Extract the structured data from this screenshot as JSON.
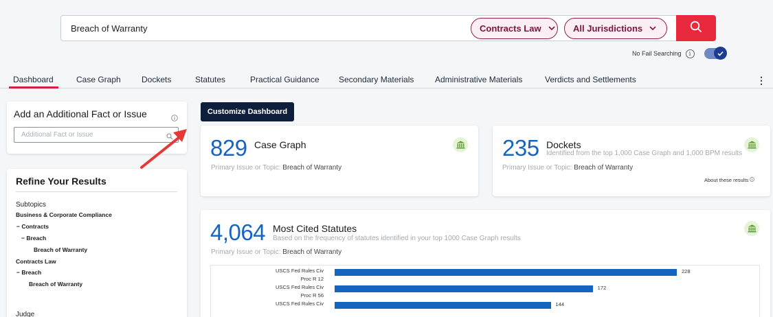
{
  "search": {
    "query": "Breach of Warranty",
    "practice_area": "Contracts Law",
    "jurisdiction": "All Jurisdictions",
    "no_fail_label": "No Fail Searching",
    "info_glyph": "i"
  },
  "tabs": [
    "Dashboard",
    "Case Graph",
    "Dockets",
    "Statutes",
    "Practical Guidance",
    "Secondary Materials",
    "Administrative Materials",
    "Verdicts and Settlements"
  ],
  "fact_card": {
    "title": "Add an Additional Fact or Issue",
    "placeholder": "Additional Fact or Issue"
  },
  "refine": {
    "title": "Refine Your Results",
    "subtopics_label": "Subtopics",
    "tree": [
      {
        "text": "Business & Corporate Compliance",
        "level": 0
      },
      {
        "text": "− Contracts",
        "level": 1
      },
      {
        "text": "− Breach",
        "level": 2
      },
      {
        "text": "Breach of Warranty",
        "level": 3
      },
      {
        "text": "Contracts Law",
        "level": 0
      },
      {
        "text": "− Breach",
        "level": 1
      },
      {
        "text": "Breach of Warranty",
        "level": 2
      }
    ],
    "judge_label": "Judge"
  },
  "customize_label": "Customize Dashboard",
  "cards": {
    "case_graph": {
      "count": "829",
      "title": "Case Graph",
      "primary_label": "Primary Issue or Topic:",
      "primary_value": "Breach of Warranty"
    },
    "dockets": {
      "count": "235",
      "title": "Dockets",
      "subtitle": "Identified from the top 1,000 Case Graph and 1,000 BPM results",
      "primary_label": "Primary Issue or Topic:",
      "primary_value": "Breach of Warranty",
      "about": "About these results"
    },
    "statutes": {
      "count": "4,064",
      "title": "Most Cited Statutes",
      "subtitle": "Based on the frequency of statutes identified in your top 1000 Case Graph results",
      "primary_label": "Primary Issue or Topic:",
      "primary_value": "Breach of Warranty"
    }
  },
  "colors": {
    "accent_red": "#e8283c",
    "pill_border": "#8c1c4c",
    "metric_blue": "#1565c0",
    "button_navy": "#0e1e3d",
    "annotation_arrow": "#e53935"
  },
  "icons": [
    "search-icon",
    "info-icon",
    "check-icon",
    "chevron-down-icon",
    "courthouse-icon",
    "kebab-menu-icon"
  ],
  "chart_data": {
    "type": "bar",
    "orientation": "horizontal",
    "categories": [
      [
        "USCS Fed Rules Civ",
        "Proc R 12"
      ],
      [
        "USCS Fed Rules Civ",
        "Proc R 56"
      ],
      [
        "USCS Fed Rules Civ"
      ]
    ],
    "values": [
      228,
      172,
      144
    ],
    "xlim": [
      0,
      300
    ]
  }
}
